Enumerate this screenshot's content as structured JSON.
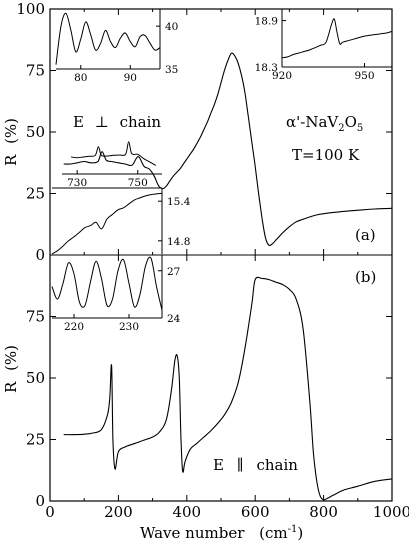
{
  "figure": {
    "xlabel_main": "Wave number",
    "xlabel_unit": "(cm",
    "xlabel_sup": "-1",
    "xlabel_close": ")",
    "ylabel": "R",
    "ylabel_unit": "(%)"
  },
  "chart_data": [
    {
      "type": "line",
      "id": "a",
      "panel_label": "(a)",
      "annotations": {
        "polarization_prefix": "E",
        "polarization_symbol": "⊥",
        "polarization_suffix": "chain",
        "compound_prefix": "α'-NaV",
        "compound_sub1": "2",
        "compound_mid": "O",
        "compound_sub2": "5",
        "temperature": "T=100 K"
      },
      "ylim": [
        0,
        100
      ],
      "xlim": [
        0,
        1000
      ],
      "yticks": [
        "0",
        "25",
        "50",
        "75",
        "100"
      ],
      "x": [
        40,
        60,
        80,
        100,
        120,
        140,
        152,
        165,
        180,
        200,
        220,
        240,
        258,
        275,
        290,
        305,
        318,
        330,
        340,
        350,
        360,
        370,
        380,
        390,
        400,
        410,
        420,
        430,
        440,
        450,
        460,
        470,
        480,
        490,
        500,
        510,
        520,
        530,
        540,
        550,
        560,
        570,
        580,
        590,
        600,
        610,
        620,
        630,
        640,
        650,
        660,
        670,
        680,
        700,
        720,
        740,
        760,
        780,
        800,
        850,
        900,
        950,
        1000
      ],
      "y": [
        37,
        37,
        37.5,
        38,
        37.5,
        38,
        42,
        38.5,
        38,
        37.5,
        37,
        36.5,
        40,
        36,
        35,
        32,
        28,
        27,
        28,
        30,
        32,
        33.5,
        35,
        37,
        39,
        41,
        43,
        45.5,
        48,
        51,
        54,
        57.5,
        61,
        65,
        70,
        75,
        79,
        82,
        81,
        78,
        73,
        66,
        56,
        46,
        36,
        25,
        15,
        7,
        4,
        4.5,
        6,
        7.5,
        9,
        11.5,
        13.5,
        14.5,
        15.5,
        16.3,
        16.8,
        17.6,
        18.2,
        18.7,
        19
      ]
    },
    {
      "type": "line",
      "id": "b",
      "panel_label": "(b)",
      "annotations": {
        "polarization_prefix": "E",
        "polarization_symbol": "∥",
        "polarization_suffix": "chain"
      },
      "ylim": [
        0,
        100
      ],
      "xlim": [
        0,
        1000
      ],
      "yticks": [
        "0",
        "25",
        "50",
        "75",
        "100"
      ],
      "x": [
        40,
        80,
        120,
        150,
        168,
        175,
        180,
        184,
        190,
        200,
        220,
        250,
        280,
        300,
        320,
        340,
        355,
        365,
        372,
        378,
        383,
        388,
        395,
        410,
        430,
        450,
        470,
        490,
        510,
        530,
        550,
        570,
        590,
        600,
        620,
        640,
        660,
        680,
        700,
        720,
        740,
        760,
        770,
        780,
        790,
        800,
        810,
        830,
        860,
        900,
        950,
        1000
      ],
      "y": [
        27,
        27,
        27.5,
        29,
        35,
        42,
        55,
        25,
        13,
        20,
        22,
        23.5,
        25,
        26,
        28,
        33,
        45,
        57,
        59,
        50,
        25,
        12,
        16,
        21,
        23.5,
        26,
        28.5,
        31.5,
        35,
        40,
        48,
        62,
        80,
        90,
        90.5,
        90,
        89,
        88,
        86,
        82,
        70,
        40,
        20,
        8,
        2,
        0.5,
        1,
        2.5,
        4.5,
        6,
        8,
        9
      ]
    },
    {
      "type": "line",
      "id": "inset-a1",
      "xticks": [
        "80",
        "90"
      ],
      "yticks": [
        "35",
        "40"
      ],
      "xlim": [
        75,
        96
      ],
      "ylim": [
        35,
        42
      ],
      "x": [
        75,
        76,
        77,
        78,
        79,
        80,
        81,
        82,
        83,
        84,
        85,
        86,
        87,
        88,
        89,
        90,
        91,
        92,
        93,
        94,
        95,
        96
      ],
      "y": [
        35.5,
        40,
        41.5,
        39.5,
        37,
        38.5,
        40.5,
        39,
        37.2,
        38,
        39.5,
        38.2,
        37.5,
        38.6,
        39.2,
        38.2,
        37.6,
        38.8,
        38.9,
        38,
        37.2,
        37.5
      ]
    },
    {
      "type": "line",
      "id": "inset-a2",
      "xticks": [
        "920",
        "950"
      ],
      "yticks": [
        "18.3",
        "18.9"
      ],
      "xlim": [
        920,
        960
      ],
      "ylim": [
        18.3,
        19.05
      ],
      "x": [
        920,
        922,
        924,
        926,
        928,
        930,
        932,
        934,
        936,
        938,
        939,
        940,
        941,
        942,
        944,
        946,
        948,
        950,
        952,
        954,
        956,
        958,
        960
      ],
      "y": [
        18.42,
        18.43,
        18.46,
        18.48,
        18.5,
        18.52,
        18.55,
        18.58,
        18.62,
        18.85,
        18.92,
        18.75,
        18.6,
        18.62,
        18.64,
        18.66,
        18.68,
        18.7,
        18.71,
        18.72,
        18.73,
        18.74,
        18.76
      ]
    },
    {
      "type": "line",
      "id": "inset-a3",
      "xticks": [
        "730",
        "750"
      ],
      "xlim": [
        725,
        758
      ],
      "ylim": [
        0,
        1
      ],
      "x": [
        728,
        730,
        732,
        734,
        736,
        737,
        738,
        740,
        742,
        744,
        746,
        747,
        748,
        750,
        752,
        754,
        756
      ],
      "y": [
        0.5,
        0.48,
        0.5,
        0.52,
        0.55,
        0.8,
        0.55,
        0.53,
        0.55,
        0.56,
        0.58,
        0.95,
        0.6,
        0.58,
        0.45,
        0.35,
        0.25
      ]
    },
    {
      "type": "line",
      "id": "inset-a4",
      "yticks": [
        "14.8",
        "15.4"
      ],
      "xlim": [
        0,
        1
      ],
      "ylim": [
        14.6,
        15.6
      ],
      "x": [
        0,
        0.05,
        0.1,
        0.15,
        0.2,
        0.25,
        0.3,
        0.35,
        0.4,
        0.45,
        0.5,
        0.55,
        0.6,
        0.65,
        0.7,
        0.75,
        0.8,
        0.85,
        0.9,
        0.95,
        1
      ],
      "y": [
        14.6,
        14.65,
        14.72,
        14.8,
        14.86,
        14.93,
        15.0,
        15.03,
        15.08,
        14.98,
        15.13,
        15.2,
        15.27,
        15.3,
        15.36,
        15.42,
        15.45,
        15.48,
        15.5,
        15.51,
        15.52
      ]
    },
    {
      "type": "line",
      "id": "inset-b1",
      "xticks": [
        "220",
        "230"
      ],
      "yticks": [
        "24",
        "27"
      ],
      "xlim": [
        216,
        236
      ],
      "ylim": [
        24,
        28
      ],
      "x": [
        216,
        217,
        218,
        219,
        220,
        221,
        222,
        223,
        224,
        225,
        226,
        227,
        228,
        229,
        230,
        231,
        232,
        233,
        234,
        235,
        236
      ],
      "y": [
        26,
        25.2,
        26.2,
        27.5,
        26.8,
        25,
        24.8,
        26.3,
        27.6,
        26.5,
        24.8,
        25.2,
        27,
        27.7,
        26.2,
        24.7,
        25.5,
        27.3,
        27.8,
        26,
        24.5
      ]
    }
  ]
}
